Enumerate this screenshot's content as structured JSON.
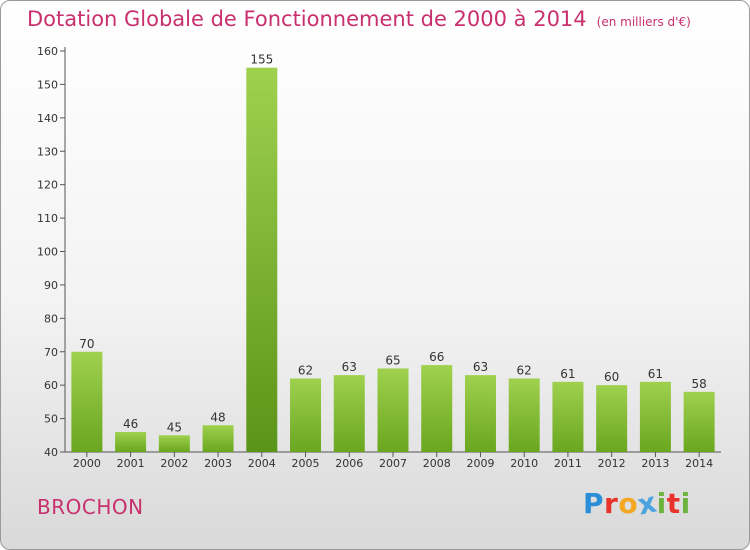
{
  "header": {
    "title": "Dotation Globale de Fonctionnement de 2000 à 2014",
    "subtitle": "(en milliers d'€)"
  },
  "commune": "BROCHON",
  "logo": {
    "letters": [
      "P",
      "r",
      "o",
      "x",
      "i",
      "t",
      "i"
    ],
    "colors": [
      "#2a8fd6",
      "#e8332b",
      "#f5a623",
      "#4aa3df",
      "#6cb33f",
      "#e8332b",
      "#6cb33f"
    ]
  },
  "chart_data": {
    "type": "bar",
    "title": "Dotation Globale de Fonctionnement de 2000 à 2014",
    "subtitle": "(en milliers d'€)",
    "xlabel": "",
    "ylabel": "",
    "categories": [
      "2000",
      "2001",
      "2002",
      "2003",
      "2004",
      "2005",
      "2006",
      "2007",
      "2008",
      "2009",
      "2010",
      "2011",
      "2012",
      "2013",
      "2014"
    ],
    "values": [
      70,
      46,
      45,
      48,
      155,
      62,
      63,
      65,
      66,
      63,
      62,
      61,
      60,
      61,
      58
    ],
    "ylim": [
      40,
      160
    ],
    "yticks": [
      40,
      50,
      60,
      70,
      80,
      90,
      100,
      110,
      120,
      130,
      140,
      150,
      160
    ],
    "grid": false,
    "bar_color": "#7fbf2e",
    "axis_color": "#555555",
    "highlight_category": "2004"
  }
}
